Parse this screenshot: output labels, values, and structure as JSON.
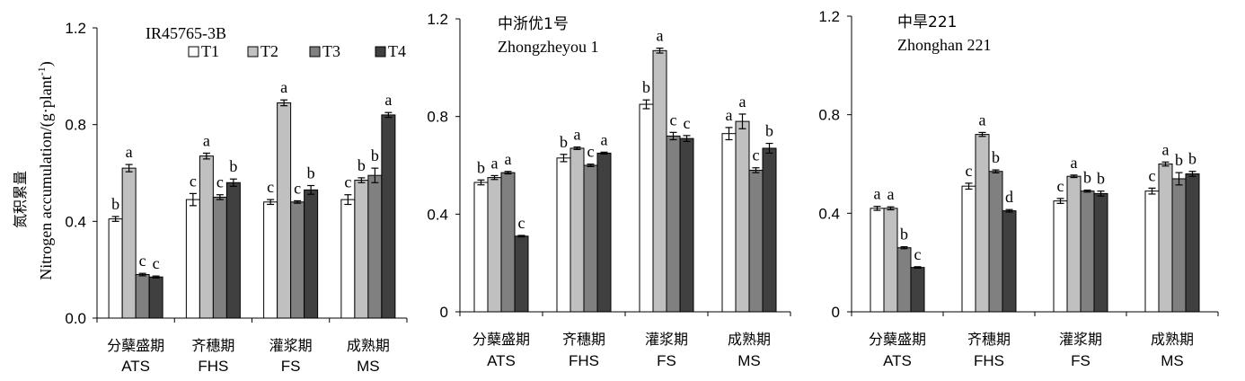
{
  "chart_data": [
    {
      "type": "bar",
      "title": "IR45765-3B",
      "title_cn": "",
      "ylabel_cn": "氮积累量",
      "ylabel": "Nitrogen accumulation/(g·plant",
      "ylabel_sup": "-1",
      "ylabel_tail": ")",
      "ylim": [
        0,
        1.2
      ],
      "yticks": [
        "0.0",
        "0.4",
        "0.8",
        "1.2"
      ],
      "categories_cn": [
        "分蘖盛期",
        "齐穗期",
        "灌浆期",
        "成熟期"
      ],
      "categories": [
        "ATS",
        "FHS",
        "FS",
        "MS"
      ],
      "legend": [
        "T1",
        "T2",
        "T3",
        "T4"
      ],
      "series": [
        {
          "name": "T1",
          "values": [
            0.41,
            0.49,
            0.48,
            0.49
          ],
          "errors": [
            0.01,
            0.025,
            0.01,
            0.02
          ],
          "letters": [
            "b",
            "c",
            "c",
            "c"
          ]
        },
        {
          "name": "T2",
          "values": [
            0.62,
            0.67,
            0.89,
            0.57
          ],
          "errors": [
            0.015,
            0.012,
            0.012,
            0.01
          ],
          "letters": [
            "a",
            "a",
            "a",
            "b"
          ]
        },
        {
          "name": "T3",
          "values": [
            0.18,
            0.5,
            0.48,
            0.59
          ],
          "errors": [
            0.005,
            0.01,
            0.005,
            0.03
          ],
          "letters": [
            "c",
            "c",
            "c",
            "b"
          ]
        },
        {
          "name": "T4",
          "values": [
            0.17,
            0.56,
            0.53,
            0.84
          ],
          "errors": [
            0.004,
            0.015,
            0.018,
            0.01
          ],
          "letters": [
            "c",
            "b",
            "b",
            "a"
          ]
        }
      ]
    },
    {
      "type": "bar",
      "title": "Zhongzheyou 1",
      "title_cn": "中浙优1号",
      "ylim": [
        0,
        1.2
      ],
      "yticks": [
        "0",
        "0.4",
        "0.8",
        "1.2"
      ],
      "categories_cn": [
        "分蘖盛期",
        "齐穗期",
        "灌浆期",
        "成熟期"
      ],
      "categories": [
        "ATS",
        "FHS",
        "FS",
        "MS"
      ],
      "series": [
        {
          "name": "T1",
          "values": [
            0.53,
            0.63,
            0.85,
            0.73
          ],
          "errors": [
            0.01,
            0.015,
            0.018,
            0.025
          ],
          "letters": [
            "b",
            "b",
            "b",
            "a"
          ]
        },
        {
          "name": "T2",
          "values": [
            0.55,
            0.67,
            1.07,
            0.78
          ],
          "errors": [
            0.008,
            0.005,
            0.01,
            0.03
          ],
          "letters": [
            "a",
            "a",
            "a",
            "a"
          ]
        },
        {
          "name": "T3",
          "values": [
            0.57,
            0.6,
            0.72,
            0.58
          ],
          "errors": [
            0.005,
            0.005,
            0.015,
            0.01
          ],
          "letters": [
            "a",
            "c",
            "c",
            "c"
          ]
        },
        {
          "name": "T4",
          "values": [
            0.31,
            0.65,
            0.71,
            0.67
          ],
          "errors": [
            0.003,
            0.004,
            0.012,
            0.02
          ],
          "letters": [
            "c",
            "a",
            "c",
            "b"
          ]
        }
      ]
    },
    {
      "type": "bar",
      "title": "Zhonghan 221",
      "title_cn": "中旱221",
      "ylim": [
        0,
        1.2
      ],
      "yticks": [
        "0",
        "0.4",
        "0.8",
        "1.2"
      ],
      "categories_cn": [
        "分蘖盛期",
        "齐穗期",
        "灌浆期",
        "成熟期"
      ],
      "categories": [
        "ATS",
        "FHS",
        "FS",
        "MS"
      ],
      "series": [
        {
          "name": "T1",
          "values": [
            0.42,
            0.51,
            0.45,
            0.49
          ],
          "errors": [
            0.008,
            0.012,
            0.01,
            0.012
          ],
          "letters": [
            "a",
            "c",
            "c",
            "c"
          ]
        },
        {
          "name": "T2",
          "values": [
            0.42,
            0.72,
            0.55,
            0.6
          ],
          "errors": [
            0.006,
            0.008,
            0.005,
            0.008
          ],
          "letters": [
            "a",
            "a",
            "a",
            "a"
          ]
        },
        {
          "name": "T3",
          "values": [
            0.26,
            0.57,
            0.49,
            0.54
          ],
          "errors": [
            0.004,
            0.006,
            0.004,
            0.025
          ],
          "letters": [
            "b",
            "b",
            "b",
            "b"
          ]
        },
        {
          "name": "T4",
          "values": [
            0.18,
            0.41,
            0.48,
            0.56
          ],
          "errors": [
            0.003,
            0.005,
            0.01,
            0.01
          ],
          "letters": [
            "c",
            "d",
            "b",
            "b"
          ]
        }
      ]
    }
  ],
  "colors": {
    "T1": "#ffffff",
    "T2": "#c0c0c0",
    "T3": "#808080",
    "T4": "#404040",
    "stroke": "#000000"
  }
}
